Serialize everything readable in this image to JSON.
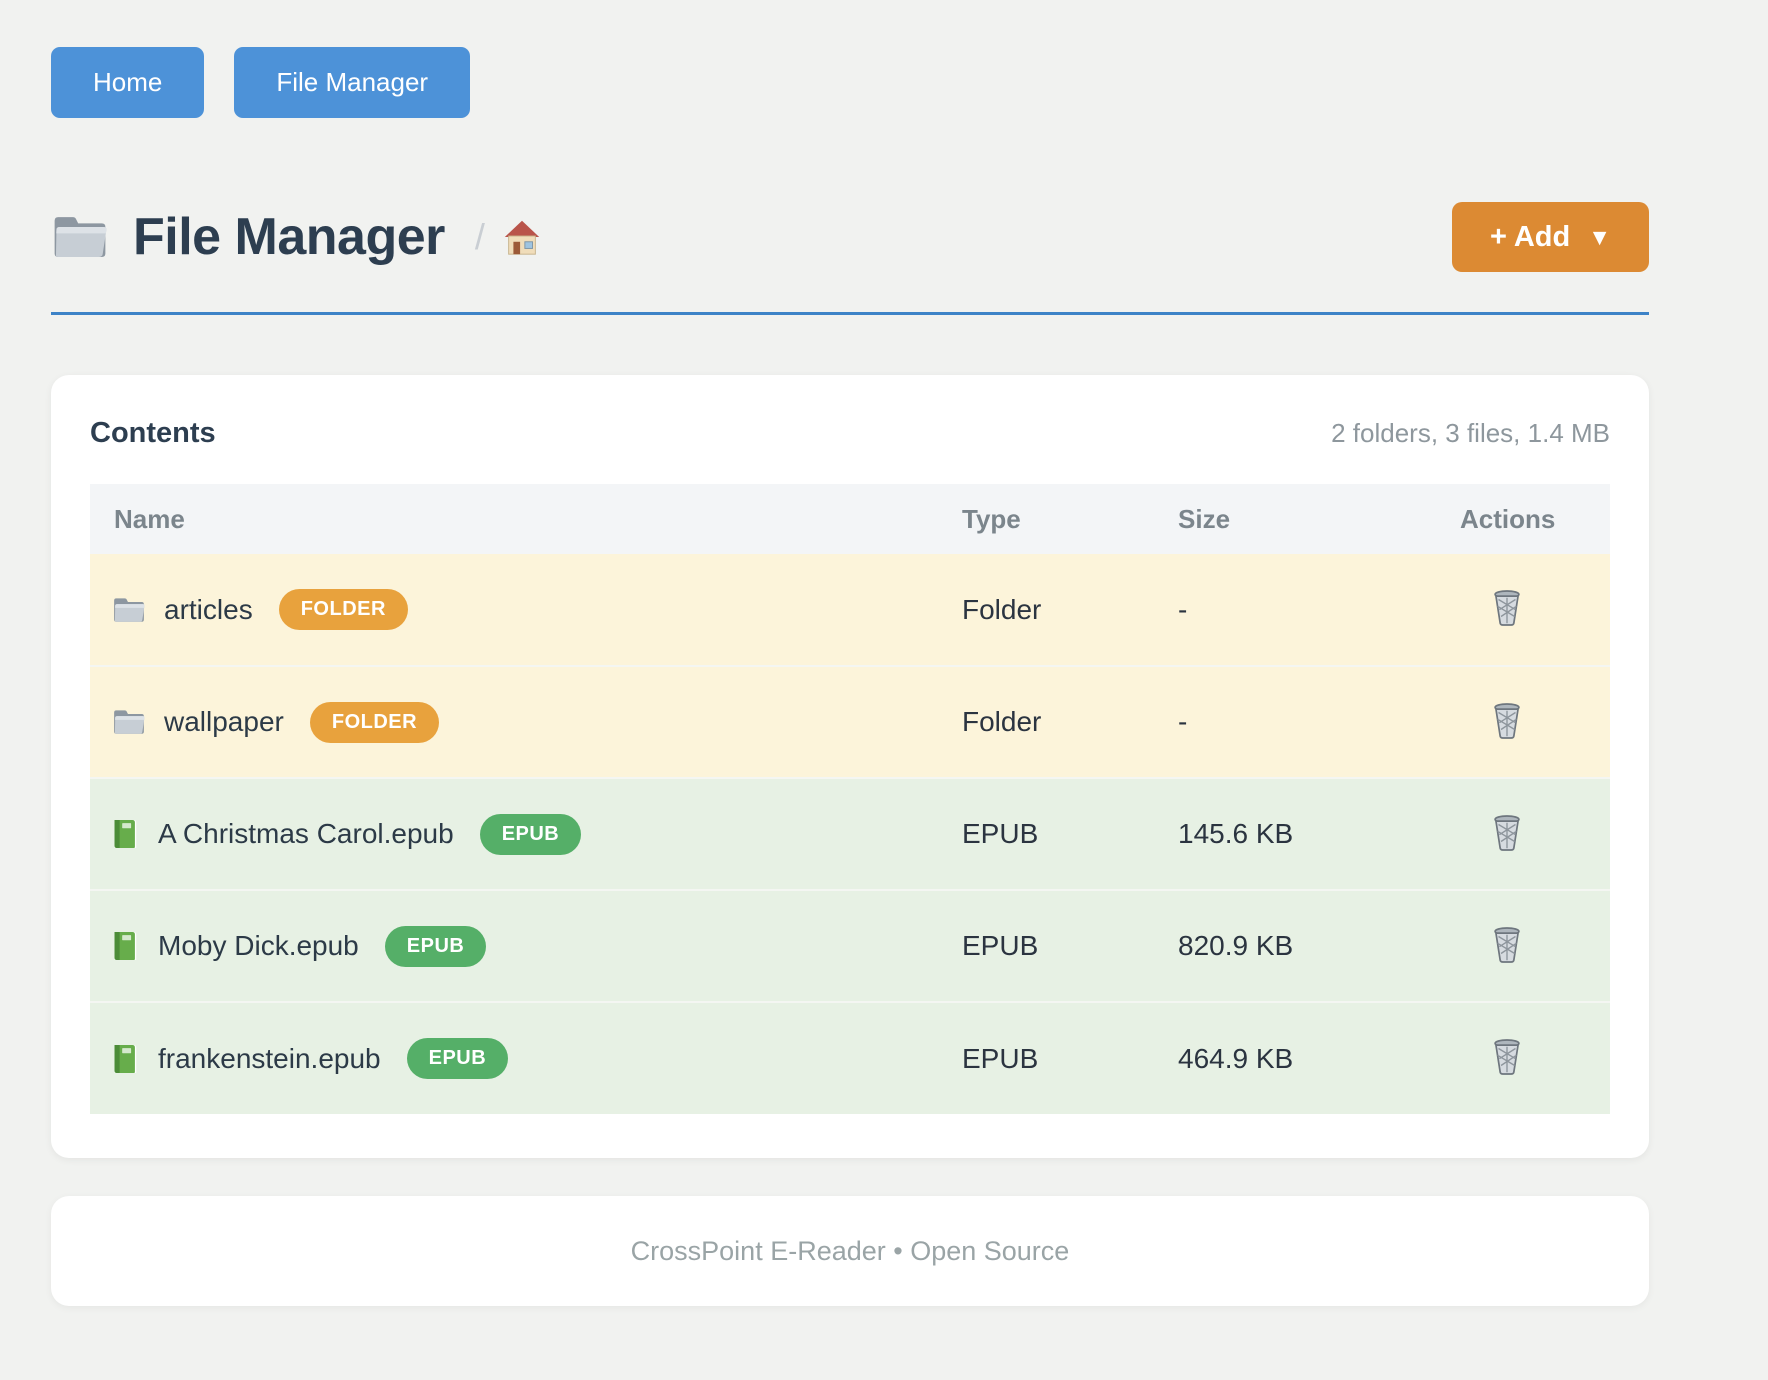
{
  "nav": {
    "home_label": "Home",
    "file_manager_label": "File Manager"
  },
  "header": {
    "title": "File Manager",
    "title_icon": "folder-icon",
    "breadcrumb_separator": "/",
    "breadcrumb_home_icon": "house-icon",
    "add_button_label": "+ Add",
    "add_button_caret": "▼"
  },
  "contents": {
    "heading": "Contents",
    "summary": "2 folders, 3 files, 1.4 MB",
    "columns": [
      "Name",
      "Type",
      "Size",
      "Actions"
    ],
    "rows": [
      {
        "name": "articles",
        "badge": "FOLDER",
        "type": "Folder",
        "size": "-",
        "kind": "folder",
        "icon": "folder-icon"
      },
      {
        "name": "wallpaper",
        "badge": "FOLDER",
        "type": "Folder",
        "size": "-",
        "kind": "folder",
        "icon": "folder-icon"
      },
      {
        "name": "A Christmas Carol.epub",
        "badge": "EPUB",
        "type": "EPUB",
        "size": "145.6 KB",
        "kind": "epub",
        "icon": "green-book-icon"
      },
      {
        "name": "Moby Dick.epub",
        "badge": "EPUB",
        "type": "EPUB",
        "size": "820.9 KB",
        "kind": "epub",
        "icon": "green-book-icon"
      },
      {
        "name": "frankenstein.epub",
        "badge": "EPUB",
        "type": "EPUB",
        "size": "464.9 KB",
        "kind": "epub",
        "icon": "green-book-icon"
      }
    ],
    "actions_icon": "trash-icon"
  },
  "footer": {
    "text": "CrossPoint E-Reader • Open Source"
  },
  "colors": {
    "accent_blue": "#4d92d8",
    "accent_orange": "#dc8a33",
    "badge_folder": "#e8a23d",
    "badge_epub": "#55af68",
    "folder_row_bg": "#fcf4da",
    "epub_row_bg": "#e7f1e4",
    "divider_blue": "#3d83c7",
    "title_ink": "#2d3e50"
  }
}
